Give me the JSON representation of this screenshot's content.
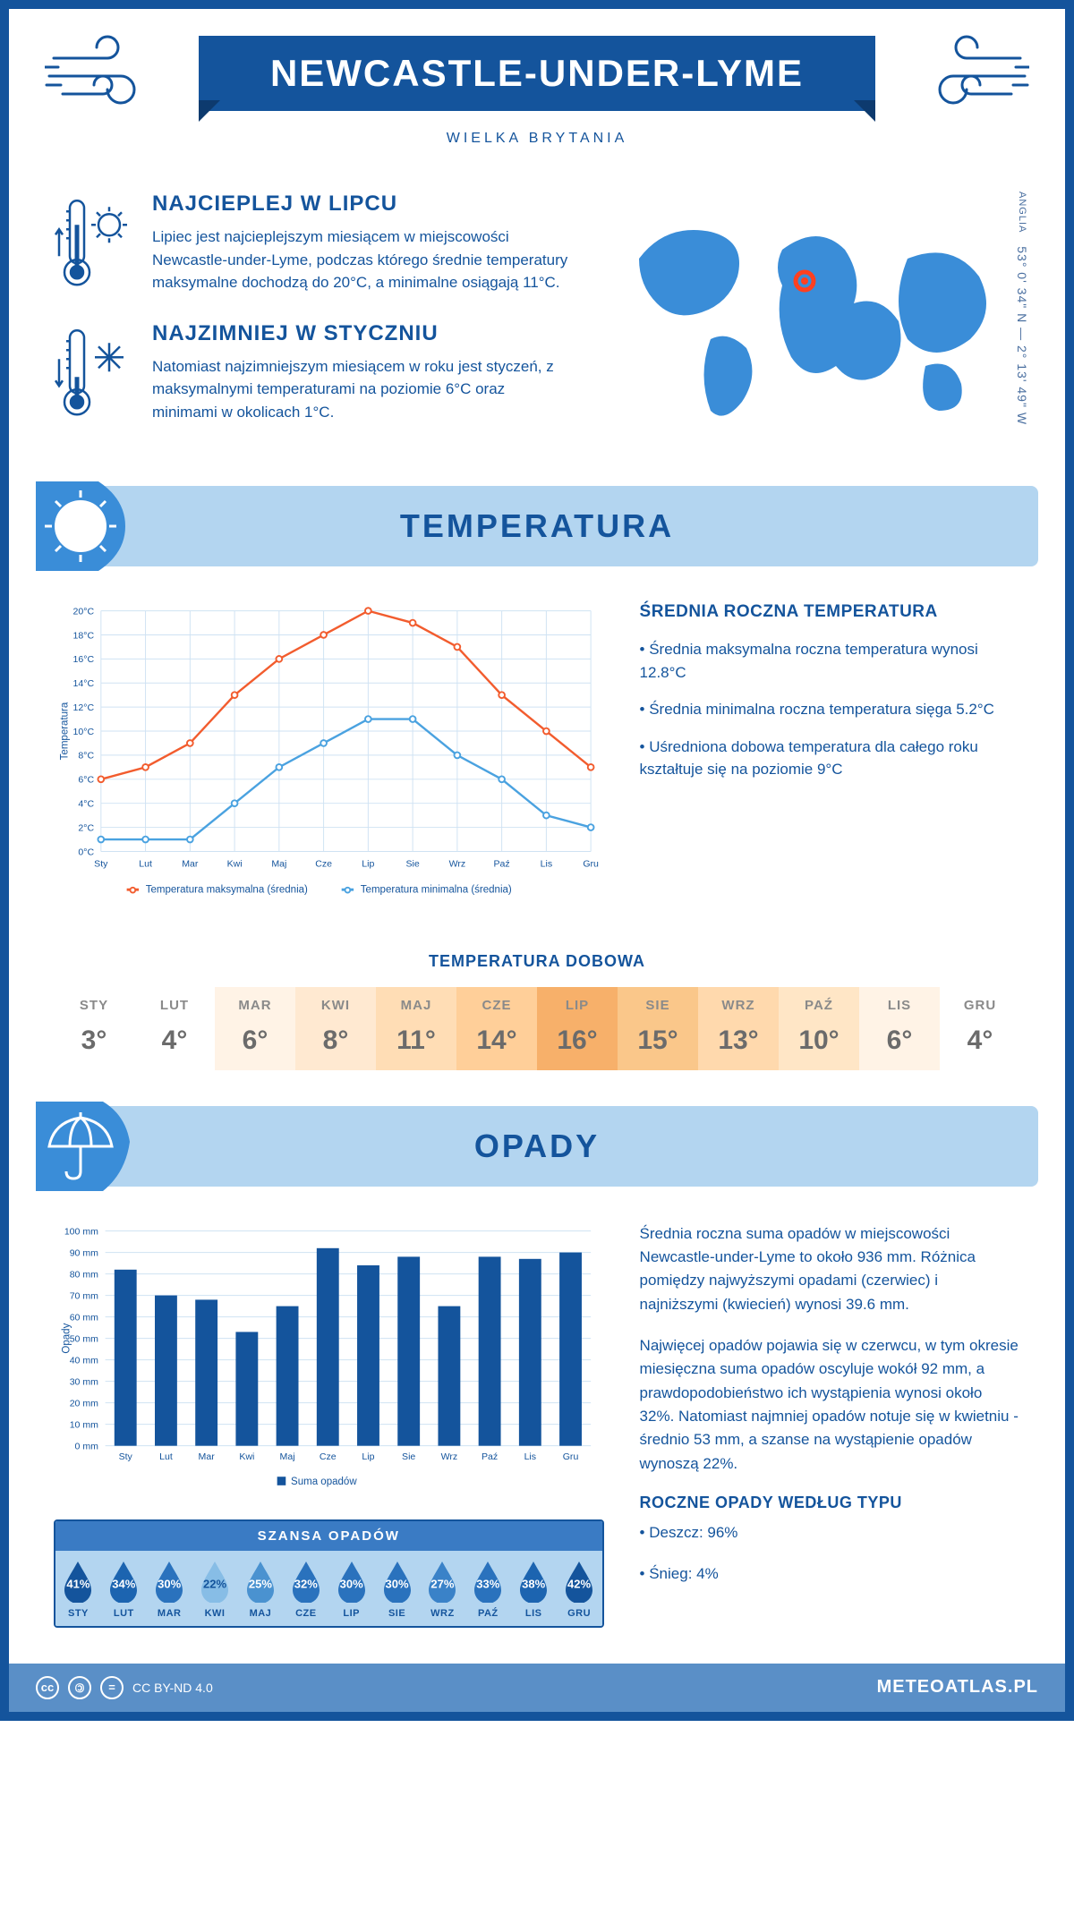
{
  "header": {
    "title": "NEWCASTLE-UNDER-LYME",
    "subtitle": "WIELKA BRYTANIA"
  },
  "coords": {
    "region": "ANGLIA",
    "text": "53° 0' 34\" N — 2° 13' 49\" W"
  },
  "warmest": {
    "title": "NAJCIEPLEJ W LIPCU",
    "text": "Lipiec jest najcieplejszym miesiącem w miejscowości Newcastle-under-Lyme, podczas którego średnie temperatury maksymalne dochodzą do 20°C, a minimalne osiągają 11°C."
  },
  "coldest": {
    "title": "NAJZIMNIEJ W STYCZNIU",
    "text": "Natomiast najzimniejszym miesiącem w roku jest styczeń, z maksymalnymi temperaturami na poziomie 6°C oraz minimami w okolicach 1°C."
  },
  "temp_section": {
    "title": "TEMPERATURA"
  },
  "temp_chart": {
    "type": "line",
    "months": [
      "Sty",
      "Lut",
      "Mar",
      "Kwi",
      "Maj",
      "Cze",
      "Lip",
      "Sie",
      "Wrz",
      "Paź",
      "Lis",
      "Gru"
    ],
    "max_series": [
      6,
      7,
      9,
      13,
      16,
      18,
      20,
      19,
      17,
      13,
      10,
      7
    ],
    "min_series": [
      1,
      1,
      1,
      4,
      7,
      9,
      11,
      11,
      8,
      6,
      3,
      2
    ],
    "max_color": "#f25c2e",
    "min_color": "#4aa2e0",
    "grid_color": "#cfe2f3",
    "ylim": [
      0,
      20
    ],
    "ytick_step": 2,
    "ylabel": "Temperatura",
    "legend_max": "Temperatura maksymalna (średnia)",
    "legend_min": "Temperatura minimalna (średnia)"
  },
  "temp_summary": {
    "title": "ŚREDNIA ROCZNA TEMPERATURA",
    "b1": "• Średnia maksymalna roczna temperatura wynosi 12.8°C",
    "b2": "• Średnia minimalna roczna temperatura sięga 5.2°C",
    "b3": "• Uśredniona dobowa temperatura dla całego roku kształtuje się na poziomie 9°C"
  },
  "daily": {
    "title": "TEMPERATURA DOBOWA",
    "months": [
      "STY",
      "LUT",
      "MAR",
      "KWI",
      "MAJ",
      "CZE",
      "LIP",
      "SIE",
      "WRZ",
      "PAŹ",
      "LIS",
      "GRU"
    ],
    "values": [
      "3°",
      "4°",
      "6°",
      "8°",
      "11°",
      "14°",
      "16°",
      "15°",
      "13°",
      "10°",
      "6°",
      "4°"
    ],
    "bg_colors": [
      "#ffffff",
      "#ffffff",
      "#fff3e6",
      "#ffe9d1",
      "#ffddb5",
      "#ffcf99",
      "#f7b06a",
      "#fac78a",
      "#ffd9ad",
      "#ffe6c6",
      "#fff3e6",
      "#ffffff"
    ]
  },
  "precip_section": {
    "title": "OPADY"
  },
  "precip_chart": {
    "type": "bar",
    "months": [
      "Sty",
      "Lut",
      "Mar",
      "Kwi",
      "Maj",
      "Cze",
      "Lip",
      "Sie",
      "Wrz",
      "Paź",
      "Lis",
      "Gru"
    ],
    "values": [
      82,
      70,
      68,
      53,
      65,
      92,
      84,
      88,
      65,
      88,
      87,
      90
    ],
    "bar_color": "#14549c",
    "grid_color": "#cfe2f3",
    "ylim": [
      0,
      100
    ],
    "ytick_step": 10,
    "ylabel": "Opady",
    "legend": "Suma opadów"
  },
  "precip_text": {
    "p1": "Średnia roczna suma opadów w miejscowości Newcastle-under-Lyme to około 936 mm. Różnica pomiędzy najwyższymi opadami (czerwiec) i najniższymi (kwiecień) wynosi 39.6 mm.",
    "p2": "Najwięcej opadów pojawia się w czerwcu, w tym okresie miesięczna suma opadów oscyluje wokół 92 mm, a prawdopodobieństwo ich wystąpienia wynosi około 32%. Natomiast najmniej opadów notuje się w kwietniu - średnio 53 mm, a szanse na wystąpienie opadów wynoszą 22%.",
    "type_title": "ROCZNE OPADY WEDŁUG TYPU",
    "rain": "• Deszcz: 96%",
    "snow": "• Śnieg: 4%"
  },
  "chance": {
    "title": "SZANSA OPADÓW",
    "months": [
      "STY",
      "LUT",
      "MAR",
      "KWI",
      "MAJ",
      "CZE",
      "LIP",
      "SIE",
      "WRZ",
      "PAŹ",
      "LIS",
      "GRU"
    ],
    "values": [
      "41%",
      "34%",
      "30%",
      "22%",
      "25%",
      "32%",
      "30%",
      "30%",
      "27%",
      "33%",
      "38%",
      "42%"
    ],
    "colors": [
      "#14549c",
      "#1c64b0",
      "#2a72bd",
      "#87bde6",
      "#4a92d0",
      "#2a72bd",
      "#2a72bd",
      "#2a72bd",
      "#3a82c8",
      "#2a72bd",
      "#1c64b0",
      "#14549c"
    ],
    "light_idx": 3
  },
  "footer": {
    "license": "CC BY-ND 4.0",
    "site": "METEOATLAS.PL"
  }
}
